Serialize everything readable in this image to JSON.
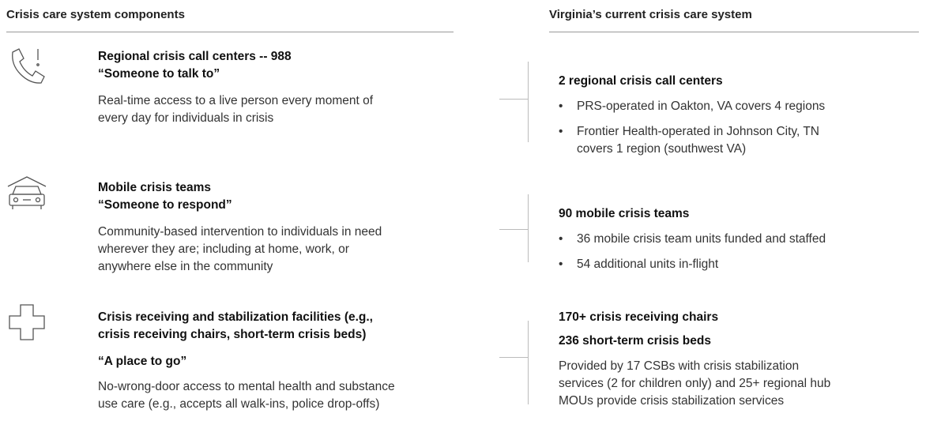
{
  "left_header": "Crisis care system components",
  "right_header": "Virginia’s current crisis care system",
  "rows": [
    {
      "title": [
        "Regional crisis call centers -- 988",
        "“Someone to talk to”"
      ],
      "tagline": null,
      "description": [
        "Real-time access to a live person every moment of",
        "every day for individuals in crisis"
      ],
      "status": [
        "2 regional crisis call centers"
      ],
      "bullets": [
        [
          "PRS-operated in Oakton, VA covers 4 regions"
        ],
        [
          "Frontier Health-operated in Johnson City, TN",
          "covers 1 region (southwest VA)"
        ]
      ],
      "notes": []
    },
    {
      "title": [
        "Mobile crisis teams",
        "“Someone to respond”"
      ],
      "tagline": null,
      "description": [
        "Community-based intervention to individuals in need",
        "wherever they are; including at home, work, or",
        "anywhere else in the community"
      ],
      "status": [
        "90 mobile crisis teams"
      ],
      "bullets": [
        [
          "36 mobile crisis team units funded and staffed"
        ],
        [
          "54 additional units in-flight"
        ]
      ],
      "notes": []
    },
    {
      "title": [
        "Crisis receiving and stabilization facilities (e.g.,",
        "crisis receiving chairs, short-term crisis beds)"
      ],
      "tagline": "“A place to go”",
      "description": [
        "No-wrong-door access to mental health and substance",
        "use care (e.g., accepts all walk-ins, police drop-offs)"
      ],
      "status": [
        "170+ crisis receiving chairs",
        "236 short-term crisis beds"
      ],
      "bullets": [],
      "notes": [
        "Provided by 17 CSBs with crisis stabilization",
        "services (2 for children only) and 25+ regional hub",
        "MOUs provide crisis stabilization services"
      ]
    }
  ]
}
